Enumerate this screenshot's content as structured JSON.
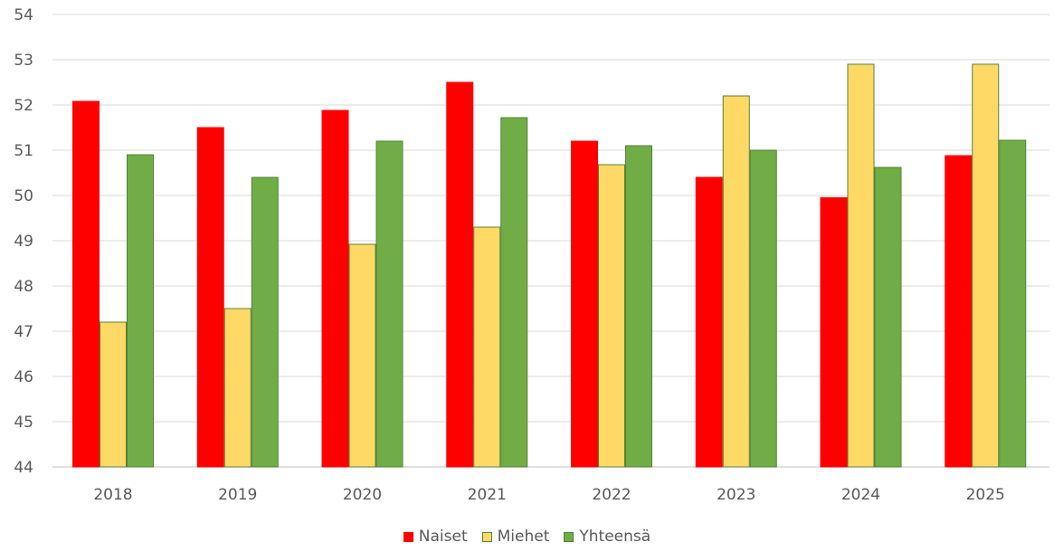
{
  "chart_data": {
    "type": "bar",
    "categories": [
      "2018",
      "2019",
      "2020",
      "2021",
      "2022",
      "2023",
      "2024",
      "2025"
    ],
    "series": [
      {
        "name": "Naiset",
        "color": "#ff0000",
        "stroke": "#ff0000",
        "values": [
          52.08,
          51.5,
          51.88,
          52.5,
          51.2,
          50.4,
          49.95,
          50.88
        ]
      },
      {
        "name": "Miehet",
        "color": "#ffd966",
        "stroke": "#548235",
        "values": [
          47.2,
          47.5,
          48.92,
          49.3,
          50.68,
          52.2,
          52.9,
          52.9
        ]
      },
      {
        "name": "Yhteensä",
        "color": "#70ad47",
        "stroke": "#548235",
        "values": [
          50.9,
          50.4,
          51.2,
          51.72,
          51.1,
          51.0,
          50.62,
          51.22
        ]
      }
    ],
    "yticks": [
      "44",
      "45",
      "46",
      "47",
      "48",
      "49",
      "50",
      "51",
      "52",
      "53",
      "54"
    ],
    "ylim": [
      44,
      54
    ],
    "grid": true,
    "legend_position": "bottom-center",
    "title": "",
    "xlabel": "",
    "ylabel": ""
  }
}
